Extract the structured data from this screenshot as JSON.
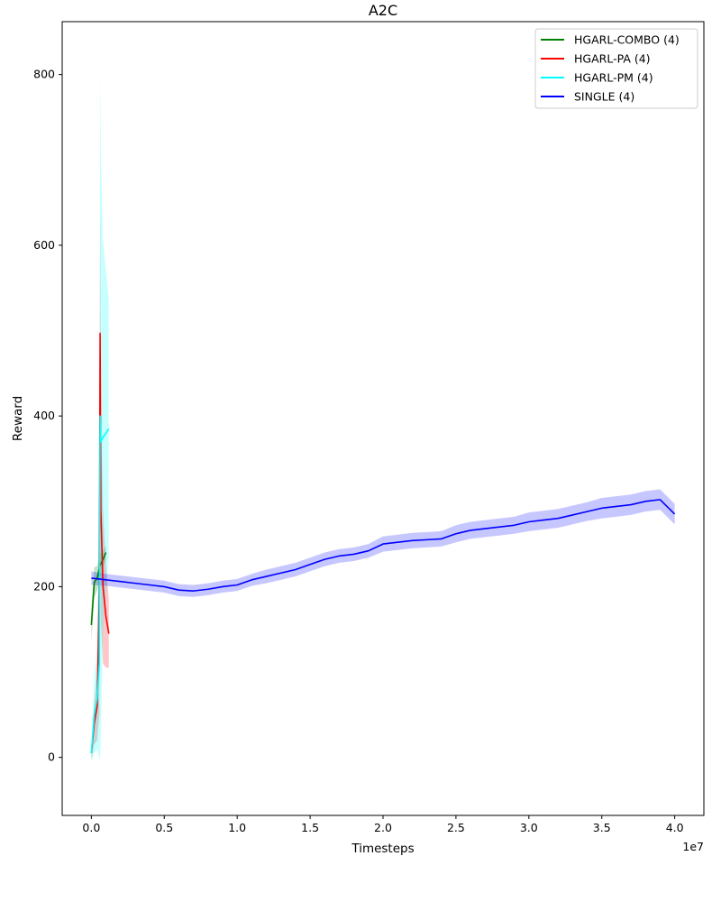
{
  "chart_data": {
    "type": "line",
    "title": "A2C",
    "xlabel": "Timesteps",
    "ylabel": "Reward",
    "x_offset_label": "1e7",
    "x_scale": 10000000,
    "xlim": [
      -0.2,
      4.2
    ],
    "ylim": [
      -68,
      862
    ],
    "xticks": [
      0.0,
      0.5,
      1.0,
      1.5,
      2.0,
      2.5,
      3.0,
      3.5,
      4.0
    ],
    "xtick_labels": [
      "0.0",
      "0.5",
      "1.0",
      "1.5",
      "2.0",
      "2.5",
      "3.0",
      "3.5",
      "4.0"
    ],
    "yticks": [
      0,
      200,
      400,
      600,
      800
    ],
    "ytick_labels": [
      "0",
      "200",
      "400",
      "600",
      "800"
    ],
    "grid": false,
    "legend_position": "top-right",
    "series": [
      {
        "name": "HGARL-COMBO (4)",
        "color": "#008000",
        "x": [
          0.0,
          0.02,
          0.04,
          0.06,
          0.08,
          0.1
        ],
        "y": [
          155,
          205,
          210,
          225,
          232,
          240
        ],
        "band": [
          20,
          18,
          14,
          14,
          10,
          8
        ]
      },
      {
        "name": "HGARL-PA (4)",
        "color": "#ff0000",
        "x": [
          0.0,
          0.02,
          0.04,
          0.055,
          0.06,
          0.065,
          0.08,
          0.1,
          0.12
        ],
        "y": [
          5,
          40,
          60,
          200,
          497,
          290,
          200,
          165,
          145
        ],
        "band": [
          8,
          25,
          40,
          150,
          148,
          130,
          90,
          60,
          40
        ]
      },
      {
        "name": "HGARL-PM (4)",
        "color": "#00ffff",
        "x": [
          0.0,
          0.02,
          0.04,
          0.055,
          0.06,
          0.065,
          0.08,
          0.1,
          0.12
        ],
        "y": [
          5,
          50,
          70,
          110,
          400,
          370,
          375,
          380,
          385
        ],
        "band": [
          10,
          45,
          60,
          110,
          405,
          340,
          230,
          190,
          150
        ]
      },
      {
        "name": "SINGLE (4)",
        "color": "#0000ff",
        "x": [
          0.0,
          0.1,
          0.2,
          0.3,
          0.4,
          0.5,
          0.6,
          0.7,
          0.8,
          0.9,
          1.0,
          1.1,
          1.2,
          1.3,
          1.4,
          1.5,
          1.6,
          1.7,
          1.8,
          1.9,
          2.0,
          2.1,
          2.2,
          2.3,
          2.4,
          2.5,
          2.6,
          2.7,
          2.8,
          2.9,
          3.0,
          3.1,
          3.2,
          3.3,
          3.4,
          3.5,
          3.6,
          3.7,
          3.8,
          3.9,
          4.0
        ],
        "y": [
          210,
          208,
          206,
          204,
          202,
          200,
          196,
          195,
          197,
          200,
          202,
          208,
          212,
          216,
          220,
          226,
          232,
          236,
          238,
          242,
          250,
          252,
          254,
          255,
          256,
          262,
          266,
          268,
          270,
          272,
          276,
          278,
          280,
          284,
          288,
          292,
          294,
          296,
          300,
          302,
          285
        ],
        "band": [
          8,
          7,
          7,
          7,
          7,
          7,
          7,
          7,
          7,
          7,
          7,
          7,
          8,
          8,
          8,
          8,
          8,
          8,
          8,
          8,
          9,
          9,
          9,
          9,
          9,
          10,
          10,
          10,
          10,
          10,
          11,
          11,
          11,
          11,
          11,
          12,
          12,
          12,
          12,
          12,
          12
        ]
      }
    ]
  }
}
